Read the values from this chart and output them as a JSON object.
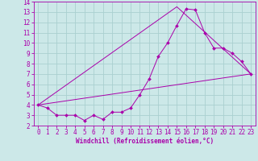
{
  "xlabel": "Windchill (Refroidissement éolien,°C)",
  "ylabel": "",
  "bg_color": "#cce8e8",
  "grid_color": "#aad0d0",
  "line_color": "#aa00aa",
  "xlim": [
    -0.5,
    23.5
  ],
  "ylim": [
    2,
    14
  ],
  "xticks": [
    0,
    1,
    2,
    3,
    4,
    5,
    6,
    7,
    8,
    9,
    10,
    11,
    12,
    13,
    14,
    15,
    16,
    17,
    18,
    19,
    20,
    21,
    22,
    23
  ],
  "yticks": [
    2,
    3,
    4,
    5,
    6,
    7,
    8,
    9,
    10,
    11,
    12,
    13,
    14
  ],
  "line1_x": [
    0,
    1,
    2,
    3,
    4,
    5,
    6,
    7,
    8,
    9,
    10,
    11,
    12,
    13,
    14,
    15,
    16,
    17,
    18,
    19,
    20,
    21,
    22,
    23
  ],
  "line1_y": [
    4.0,
    3.7,
    3.0,
    3.0,
    3.0,
    2.5,
    3.0,
    2.6,
    3.3,
    3.3,
    3.7,
    5.0,
    6.5,
    8.7,
    10.0,
    11.7,
    13.3,
    13.2,
    11.0,
    9.5,
    9.5,
    9.0,
    8.2,
    7.0
  ],
  "line2_x": [
    0,
    23
  ],
  "line2_y": [
    4.0,
    7.0
  ],
  "line3_x": [
    0,
    15,
    23
  ],
  "line3_y": [
    4.0,
    13.5,
    7.0
  ],
  "tick_fontsize": 5.5,
  "xlabel_fontsize": 5.5,
  "lw": 0.7,
  "ms": 2.0
}
